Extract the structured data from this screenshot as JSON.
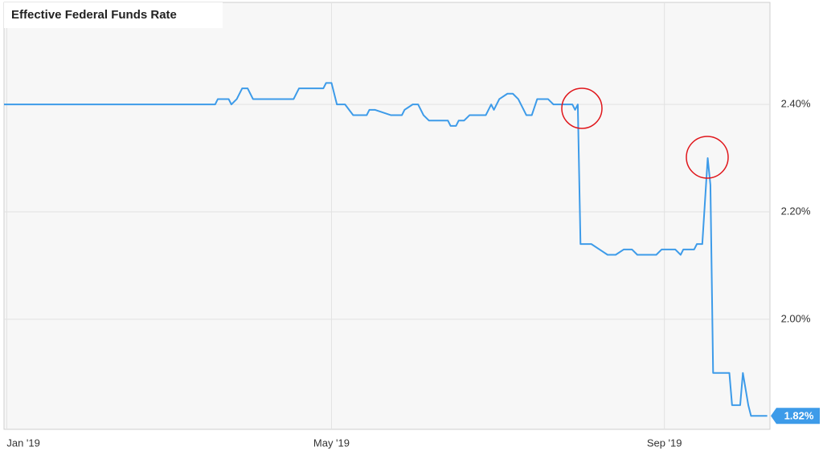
{
  "chart_data": {
    "type": "line",
    "title": "Effective Federal Funds Rate",
    "color": "#3d9be9",
    "grid": true,
    "xlim": [
      -1,
      282
    ],
    "xticks": [
      {
        "value": 0,
        "label": "Jan '19"
      },
      {
        "value": 120,
        "label": "May '19"
      },
      {
        "value": 243,
        "label": "Sep '19"
      }
    ],
    "ylim": [
      1.795,
      2.59
    ],
    "yticks": [
      {
        "value": 2.0,
        "label": "2.00%"
      },
      {
        "value": 2.2,
        "label": "2.20%"
      },
      {
        "value": 2.4,
        "label": "2.40%"
      }
    ],
    "x": [
      -1,
      77,
      78,
      82,
      83,
      85,
      87,
      89,
      91,
      106,
      108,
      117,
      118,
      120,
      122,
      125,
      128,
      133,
      134,
      136,
      142,
      146,
      147,
      150,
      152,
      154,
      156,
      163,
      164,
      166,
      167,
      169,
      171,
      177,
      179,
      180,
      182,
      185,
      187,
      189,
      191,
      192,
      194,
      196,
      200,
      202,
      209,
      210,
      211,
      212,
      216,
      219,
      222,
      225,
      228,
      231,
      233,
      240,
      242,
      247,
      249,
      250,
      254,
      255,
      257,
      259,
      260,
      261,
      267,
      268,
      271,
      272,
      273,
      274,
      275,
      281
    ],
    "values": [
      2.4,
      2.4,
      2.41,
      2.41,
      2.4,
      2.41,
      2.43,
      2.43,
      2.41,
      2.41,
      2.43,
      2.43,
      2.44,
      2.44,
      2.4,
      2.4,
      2.38,
      2.38,
      2.39,
      2.39,
      2.38,
      2.38,
      2.39,
      2.4,
      2.4,
      2.38,
      2.37,
      2.37,
      2.36,
      2.36,
      2.37,
      2.37,
      2.38,
      2.38,
      2.4,
      2.39,
      2.41,
      2.42,
      2.42,
      2.41,
      2.39,
      2.38,
      2.38,
      2.41,
      2.41,
      2.4,
      2.4,
      2.39,
      2.4,
      2.14,
      2.14,
      2.13,
      2.12,
      2.12,
      2.13,
      2.13,
      2.12,
      2.12,
      2.13,
      2.13,
      2.12,
      2.13,
      2.13,
      2.14,
      2.14,
      2.3,
      2.25,
      1.9,
      1.9,
      1.84,
      1.84,
      1.9,
      1.87,
      1.84,
      1.82,
      1.82
    ],
    "last_value": {
      "value": 1.82,
      "label": "1.82%"
    }
  }
}
